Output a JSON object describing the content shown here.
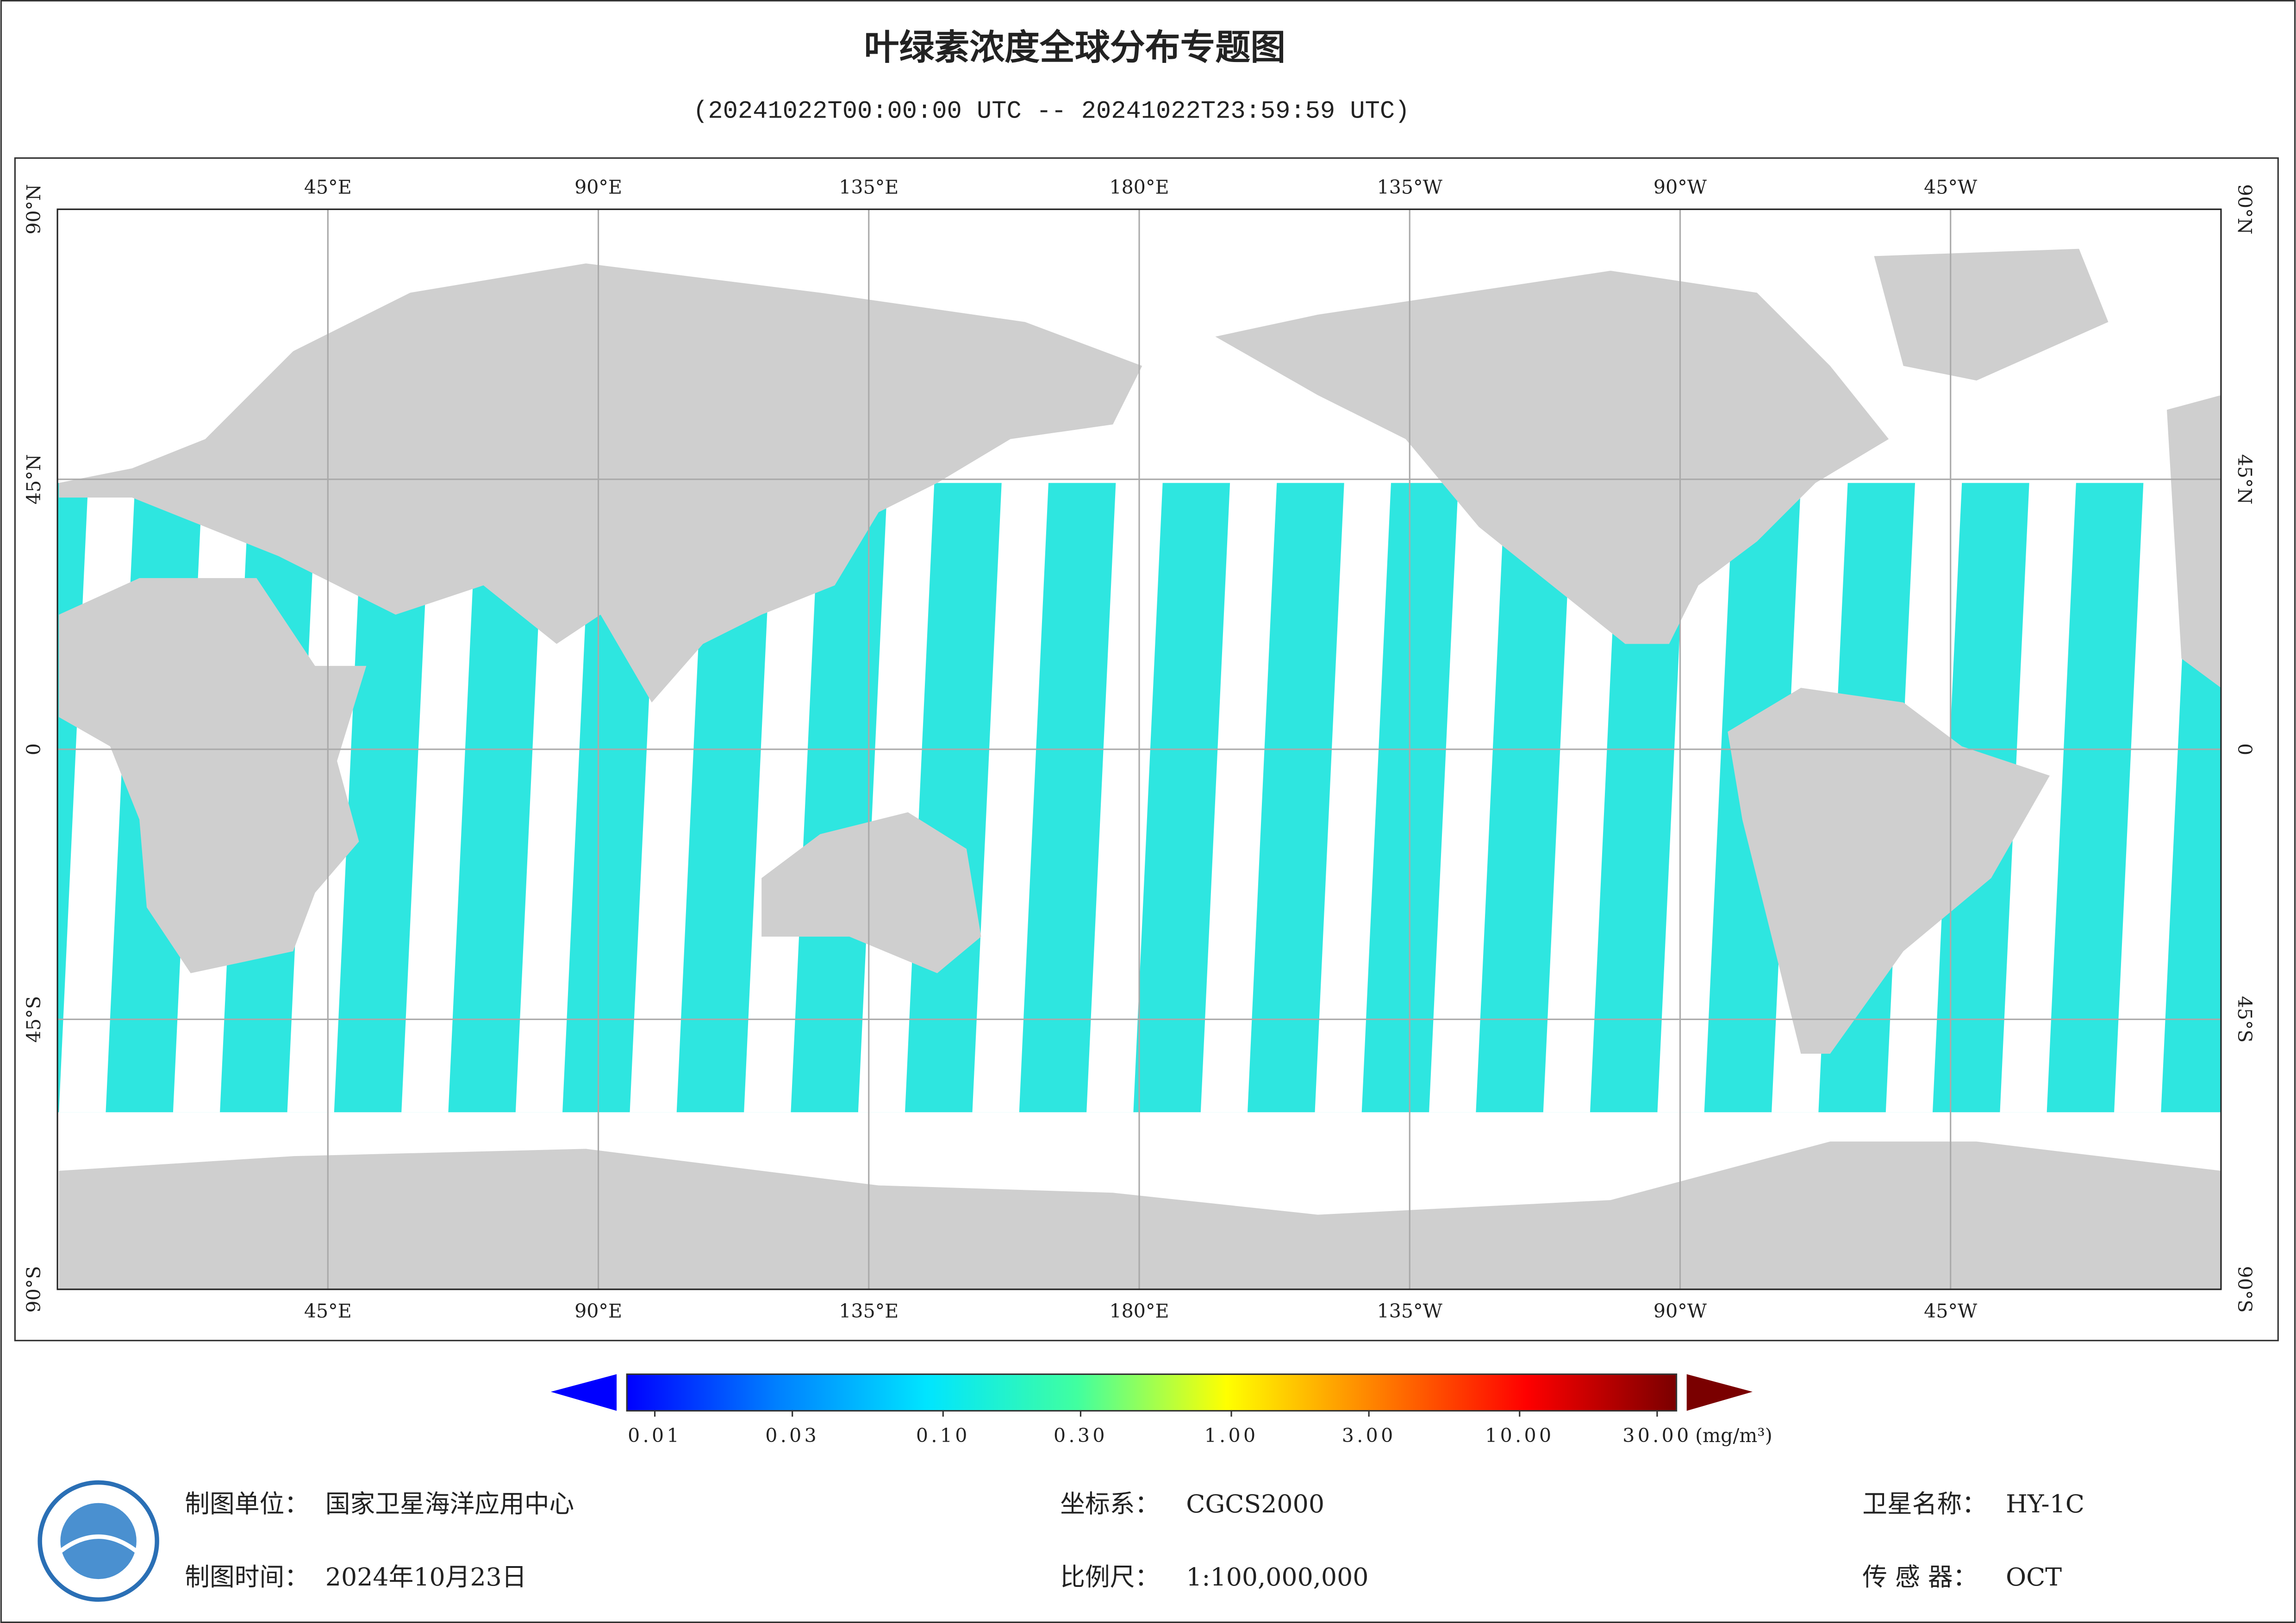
{
  "header": {
    "title": "叶绿素浓度全球分布专题图",
    "subtitle": "(20241022T00:00:00 UTC -- 20241022T23:59:59 UTC)"
  },
  "map": {
    "lonlim": [
      0,
      360
    ],
    "latlim": [
      -90,
      90
    ],
    "lon_ticks": [
      {
        "value": 45,
        "label": "45°E"
      },
      {
        "value": 90,
        "label": "90°E"
      },
      {
        "value": 135,
        "label": "135°E"
      },
      {
        "value": 180,
        "label": "180°E"
      },
      {
        "value": 225,
        "label": "135°W"
      },
      {
        "value": 270,
        "label": "90°W"
      },
      {
        "value": 315,
        "label": "45°W"
      }
    ],
    "lat_ticks": [
      {
        "value": 90,
        "label": "90°N"
      },
      {
        "value": 45,
        "label": "45°N"
      },
      0,
      {
        "value": -45,
        "label": "45°S"
      },
      {
        "value": -90,
        "label": "90°S"
      }
    ],
    "grid": true
  },
  "colorbar": {
    "scale": "log",
    "lim": [
      0.008,
      35
    ],
    "ticks": [
      0.01,
      0.03,
      {
        "value": 0.1,
        "label": "0.10"
      },
      {
        "value": 0.3,
        "label": "0.30"
      },
      {
        "value": 1,
        "label": "1.00"
      },
      {
        "value": 3,
        "label": "3.00"
      },
      {
        "value": 10,
        "label": "10.00"
      },
      {
        "value": 30,
        "label": "30.00"
      }
    ],
    "unit": "(mg/m³)",
    "colors": [
      "#0000ff",
      "#0080ff",
      "#00e5ff",
      "#40ffa0",
      "#ffff00",
      "#ff8000",
      "#ff0000",
      "#7a0000"
    ]
  },
  "footer": {
    "unit_label": "制图单位：",
    "unit": "国家卫星海洋应用中心",
    "time_label": "制图时间：",
    "time": "2024年10月23日",
    "crs_label": "坐标系：",
    "crs": "CGCS2000",
    "scale_label": "比例尺：",
    "scale": "1:100,000,000",
    "satellite_label": "卫星名称：",
    "satellite": "HY-1C",
    "sensor_label": "传 感 器：",
    "sensor": "OCT"
  }
}
